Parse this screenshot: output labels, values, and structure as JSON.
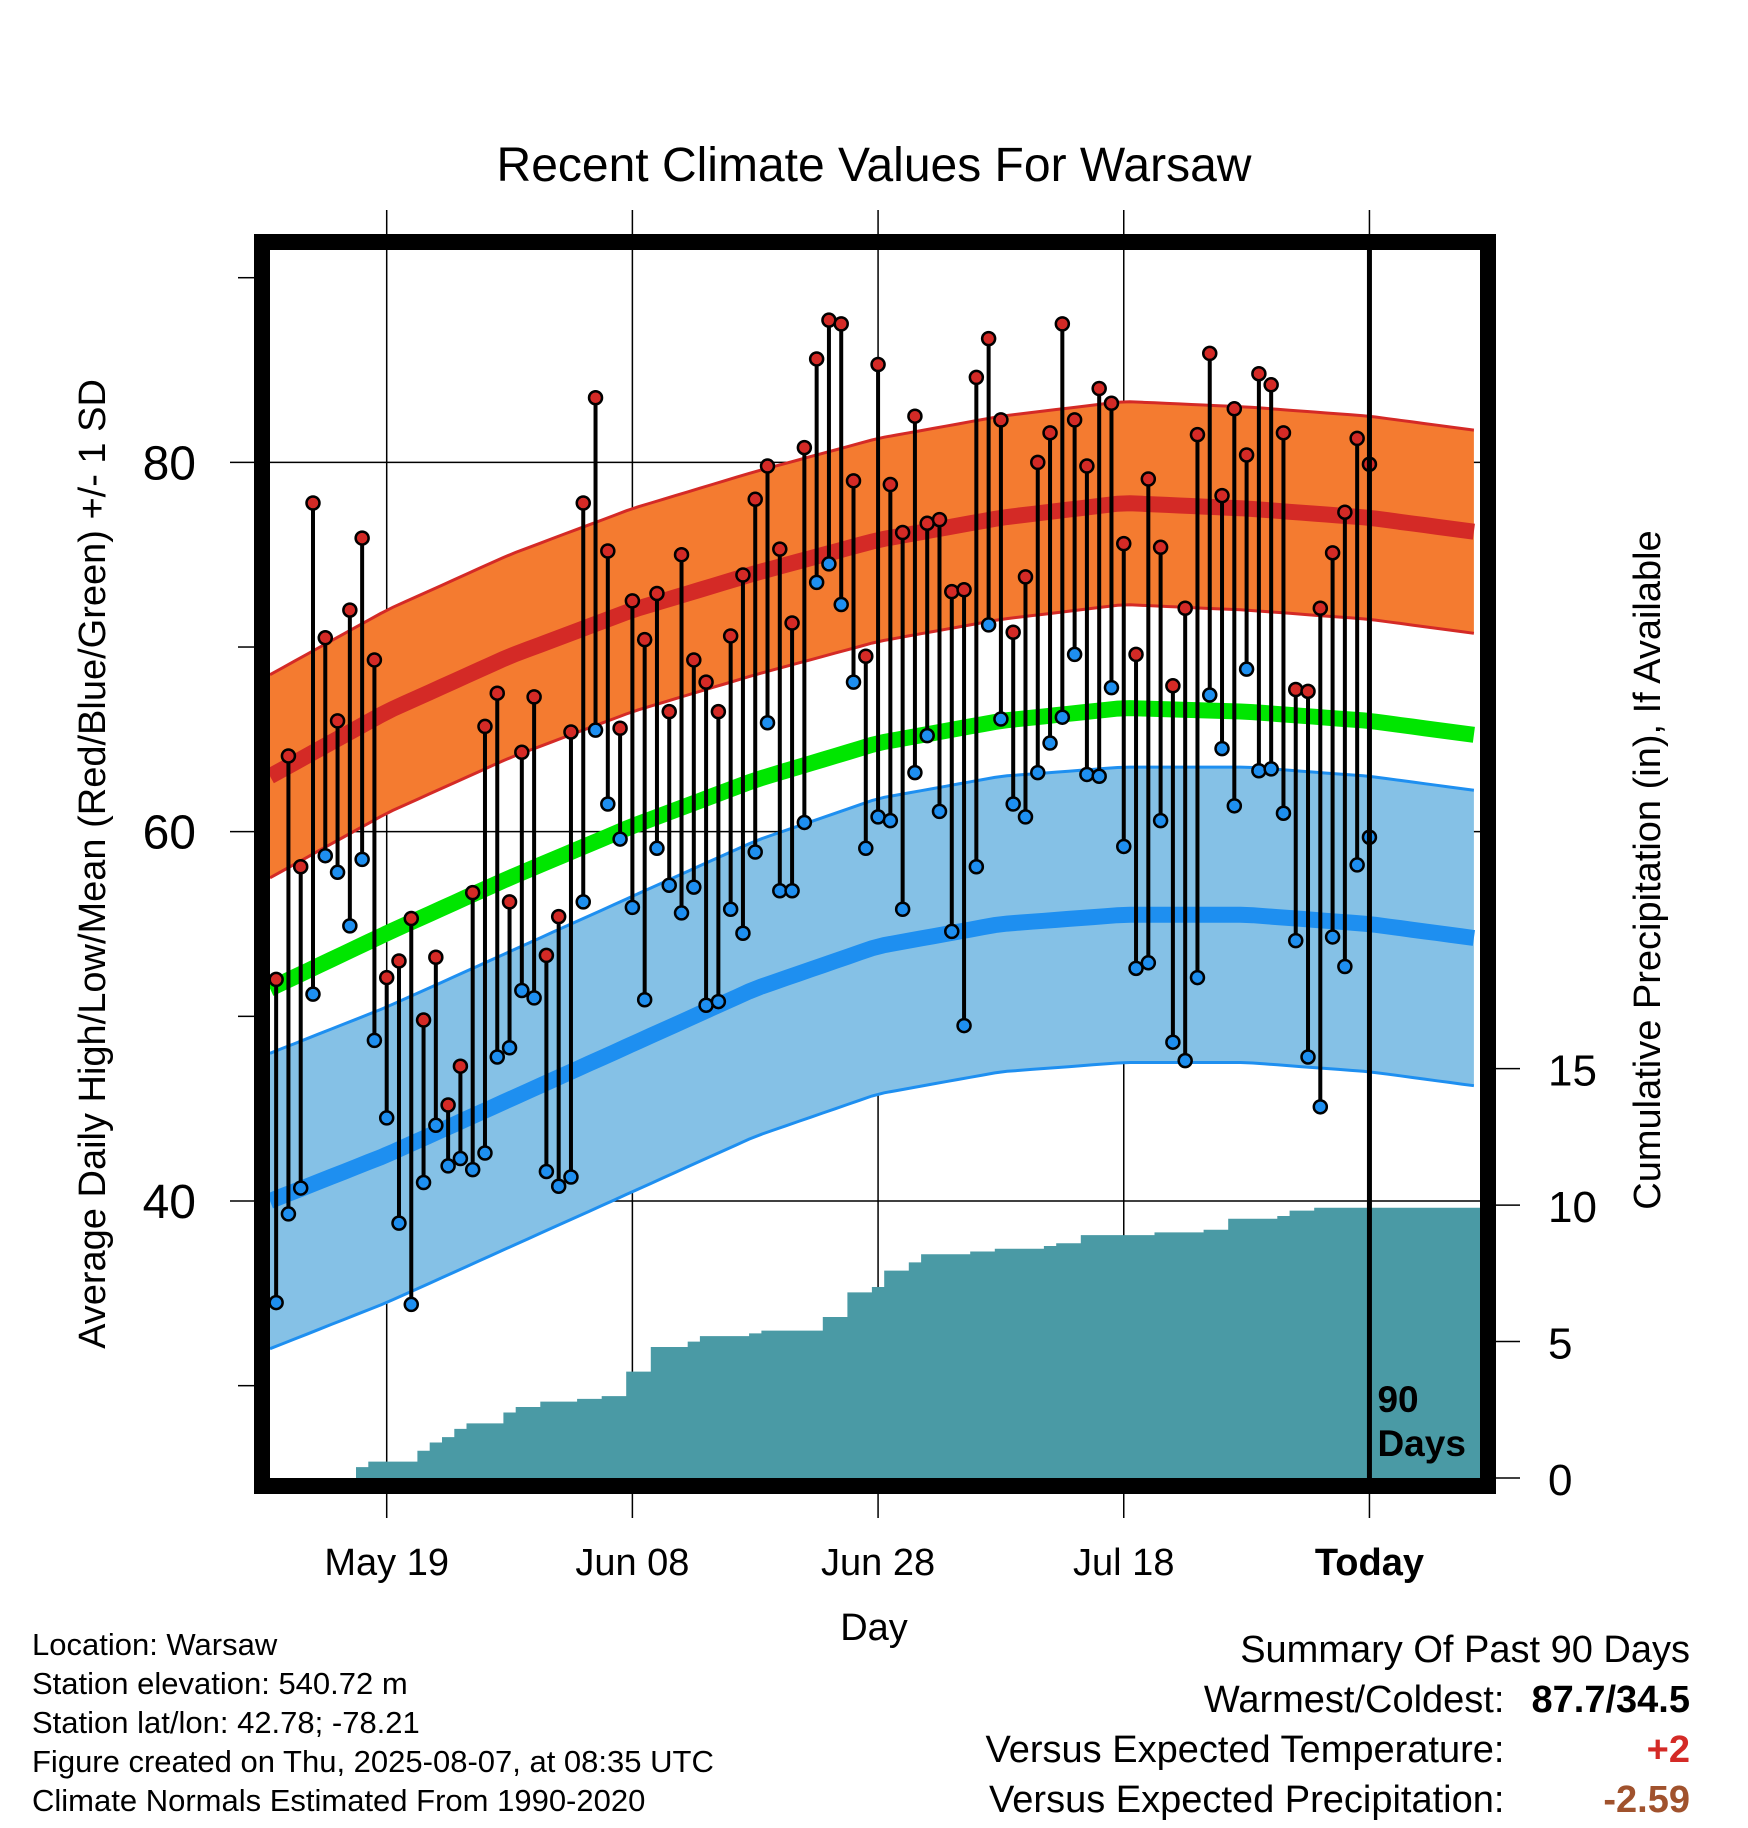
{
  "title": "Recent Climate Values For Warsaw",
  "info": {
    "location": "Location: Warsaw",
    "elevation": "Station elevation: 540.72 m",
    "latlon": "Station lat/lon: 42.78; -78.21",
    "created": "Figure created on Thu, 2025-08-07, at 08:35 UTC",
    "normals": "Climate Normals Estimated From 1990-2020"
  },
  "summary": {
    "heading": "Summary Of Past 90 Days",
    "warmest_label": "Warmest/Coldest:",
    "warmest_value": "87.7/34.5",
    "temp_label": "Versus Expected Temperature:",
    "temp_value": "+2",
    "precip_label": "Versus Expected Precipitation:",
    "precip_value": "-2.59"
  },
  "chart_data": {
    "type": "line",
    "title": "Recent Climate Values For Warsaw",
    "xlabel": "Day",
    "ylabel": "Average Daily High/Low/Mean (Red/Blue/Green) +/- 1 SD",
    "y2label": "Cumulative Precipitation (in), If Available",
    "ylim": [
      25,
      91.5
    ],
    "y2lim": [
      0,
      45
    ],
    "yticks": [
      40,
      60,
      80
    ],
    "y2ticks": [
      0,
      5,
      10,
      15
    ],
    "xlim": [
      -89.5,
      9
    ],
    "xticks": [
      {
        "day": -80,
        "label": "May 19"
      },
      {
        "day": -60,
        "label": "Jun 08"
      },
      {
        "day": -40,
        "label": "Jun 28"
      },
      {
        "day": -20,
        "label": "Jul 18"
      },
      {
        "day": 0,
        "label": "Today"
      }
    ],
    "today_marker": "90\nDays",
    "colors": {
      "high_band": "#f47b30",
      "high_line": "#d42a26",
      "low_band": "#85c1e6",
      "low_line": "#1e8ff0",
      "mean_line": "#00e600",
      "precip": "#4a9aa5",
      "high_point": "#d42a26",
      "low_point": "#1e8ff0"
    },
    "normal_high": {
      "x": [
        -89.5,
        -80,
        -70,
        -60,
        -50,
        -40,
        -30,
        -20,
        -10,
        0,
        9
      ],
      "values": [
        63,
        66.5,
        69.5,
        72,
        74,
        75.8,
        77,
        77.8,
        77.5,
        77,
        76.2
      ],
      "sd": 5.5
    },
    "normal_low": {
      "x": [
        -89.5,
        -80,
        -70,
        -60,
        -50,
        -40,
        -30,
        -20,
        -10,
        0,
        9
      ],
      "values": [
        40,
        42.5,
        45.5,
        48.5,
        51.5,
        53.8,
        55,
        55.5,
        55.5,
        55,
        54.2
      ],
      "sd": 8
    },
    "normal_mean": {
      "x": [
        -89.5,
        -80,
        -70,
        -60,
        -50,
        -40,
        -30,
        -20,
        -10,
        0,
        9
      ],
      "values": [
        51.5,
        54.5,
        57.5,
        60.3,
        62.8,
        64.8,
        66,
        66.7,
        66.5,
        66,
        65.2
      ]
    },
    "daily_highs": [
      52,
      64.1,
      58.1,
      77.8,
      70.5,
      66,
      72,
      75.9,
      69.3,
      52.1,
      53,
      55.3,
      49.8,
      53.2,
      45.2,
      47.3,
      56.7,
      65.7,
      67.5,
      56.2,
      64.3,
      67.3,
      53.3,
      55.4,
      65.4,
      77.8,
      83.5,
      75.2,
      65.6,
      72.5,
      70.4,
      72.9,
      66.5,
      75,
      69.3,
      68.1,
      66.5,
      70.6,
      73.9,
      78,
      79.8,
      75.3,
      71.3,
      80.8,
      85.6,
      87.7,
      87.5,
      79,
      69.5,
      85.3,
      78.8,
      76.2,
      82.5,
      76.7,
      76.9,
      73,
      73.1,
      84.6,
      86.7,
      82.3,
      70.8,
      73.8,
      80,
      81.6,
      87.5,
      82.3,
      79.8,
      84,
      83.2,
      75.6,
      69.6,
      79.1,
      75.4,
      67.9,
      72.1,
      81.5,
      85.9,
      78.2,
      82.9,
      80.4,
      84.8,
      84.2,
      81.6,
      67.7,
      67.6,
      72.1,
      75.1,
      77.3,
      81.3,
      79.9
    ],
    "daily_lows": [
      34.5,
      39.3,
      40.7,
      51.2,
      58.7,
      57.8,
      54.9,
      58.5,
      48.7,
      44.5,
      38.8,
      34.4,
      41,
      44.1,
      41.9,
      42.3,
      41.7,
      42.6,
      47.8,
      48.3,
      51.4,
      51,
      41.6,
      40.8,
      41.3,
      56.2,
      65.5,
      61.5,
      59.6,
      55.9,
      50.9,
      59.1,
      57.1,
      55.6,
      57,
      50.6,
      50.8,
      55.8,
      54.5,
      58.9,
      65.9,
      56.8,
      56.8,
      60.5,
      73.5,
      74.5,
      72.3,
      68.1,
      59.1,
      60.8,
      60.6,
      55.8,
      63.2,
      65.2,
      61.1,
      54.6,
      49.5,
      58.1,
      71.2,
      66.1,
      61.5,
      60.8,
      63.2,
      64.8,
      66.2,
      69.6,
      63.1,
      63,
      67.8,
      59.2,
      52.6,
      52.9,
      60.6,
      48.6,
      47.6,
      52.1,
      67.4,
      64.5,
      61.4,
      68.8,
      63.3,
      63.4,
      61,
      54.1,
      47.8,
      45.1,
      54.3,
      52.7,
      58.2,
      59.7
    ],
    "cumulative_precip": {
      "x": [
        -89.5,
        -83.5,
        -82.5,
        -81.5,
        -80.5,
        -79.5,
        -78.5,
        -77.5,
        -76.5,
        -75.5,
        -74.5,
        -73.5,
        -72.5,
        -71.5,
        -70.5,
        -69.5,
        -68.5,
        -67.5,
        -66.5,
        -65.5,
        -64.5,
        -63.5,
        -62.5,
        -61.5,
        -60.5,
        -59.5,
        -58.5,
        -57.5,
        -56.5,
        -55.5,
        -54.5,
        -53.5,
        -52.5,
        -51.5,
        -50.5,
        -49.5,
        -48.5,
        -47.5,
        -46.5,
        -45.5,
        -44.5,
        -43.5,
        -42.5,
        -41.5,
        -40.5,
        -39.5,
        -38.5,
        -37.5,
        -36.5,
        -35.5,
        -34.5,
        -33.5,
        -32.5,
        -31.5,
        -30.5,
        -29.5,
        -28.5,
        -27.5,
        -26.5,
        -25.5,
        -24.5,
        -23.5,
        -22.5,
        -21.5,
        -20.5,
        -19.5,
        -18.5,
        -17.5,
        -16.5,
        -15.5,
        -14.5,
        -13.5,
        -12.5,
        -11.5,
        -10.5,
        -9.5,
        -8.5,
        -7.5,
        -6.5,
        -5.5,
        -4.5,
        -3.5,
        -2.5,
        -1.5,
        -0.5,
        0.5,
        9
      ],
      "values": [
        0,
        0,
        0.4,
        0.6,
        0.6,
        0.6,
        0.6,
        1.0,
        1.3,
        1.5,
        1.8,
        2.0,
        2.0,
        2.0,
        2.4,
        2.6,
        2.6,
        2.8,
        2.8,
        2.8,
        2.9,
        2.9,
        3.0,
        3.0,
        3.9,
        3.9,
        4.8,
        4.8,
        4.8,
        5.0,
        5.2,
        5.2,
        5.2,
        5.2,
        5.3,
        5.4,
        5.4,
        5.4,
        5.4,
        5.4,
        5.9,
        5.9,
        6.8,
        6.8,
        7.0,
        7.6,
        7.6,
        7.9,
        8.2,
        8.2,
        8.2,
        8.2,
        8.3,
        8.3,
        8.4,
        8.4,
        8.4,
        8.4,
        8.5,
        8.6,
        8.6,
        8.9,
        8.9,
        8.9,
        8.9,
        8.9,
        8.9,
        9.0,
        9.0,
        9.0,
        9.0,
        9.1,
        9.1,
        9.5,
        9.5,
        9.5,
        9.5,
        9.6,
        9.8,
        9.8,
        9.9,
        9.9,
        9.9,
        9.9,
        9.9,
        9.9,
        9.9
      ]
    }
  }
}
